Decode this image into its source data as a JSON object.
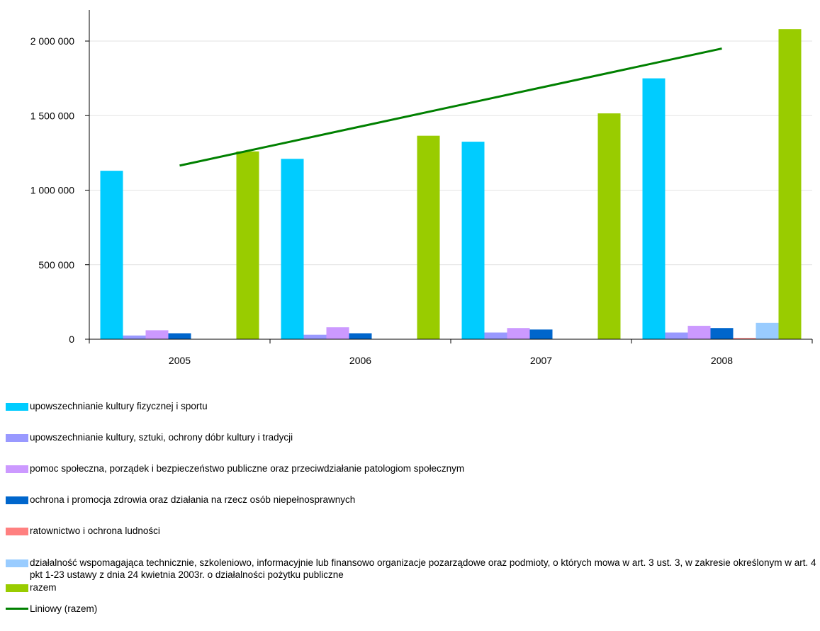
{
  "chart_data": {
    "type": "bar",
    "categories": [
      "2005",
      "2006",
      "2007",
      "2008"
    ],
    "ylim": [
      0,
      2200000
    ],
    "yticks": [
      0,
      500000,
      1000000,
      1500000,
      2000000
    ],
    "ytick_labels": [
      "0",
      "500 000",
      "1 000 000",
      "1 500 000",
      "2 000 000"
    ],
    "grid": true,
    "legend_position": "bottom",
    "series": [
      {
        "name": "upowszechnianie kultury fizycznej i sportu",
        "color": "#00ccff",
        "values": [
          1130000,
          1210000,
          1325000,
          1750000
        ]
      },
      {
        "name": "upowszechnianie kultury, sztuki, ochrony dóbr kultury i tradycji",
        "color": "#9999ff",
        "values": [
          25000,
          30000,
          45000,
          45000
        ]
      },
      {
        "name": "pomoc społeczna, porządek i bezpieczeństwo publiczne oraz przeciwdziałanie patologiom społecznym",
        "color": "#cc99ff",
        "values": [
          60000,
          80000,
          75000,
          90000
        ]
      },
      {
        "name": "ochrona i promocja zdrowia oraz działania na rzecz osób niepełnosprawnych",
        "color": "#0066cc",
        "values": [
          40000,
          40000,
          65000,
          75000
        ]
      },
      {
        "name": "ratownictwo i ochrona ludności",
        "color": "#ff8080",
        "values": [
          0,
          0,
          0,
          8000
        ]
      },
      {
        "name": "działalność wspomagająca technicznie, szkoleniowo, informacyjnie lub finansowo organizacje pozarządowe oraz podmioty, o których mowa w art. 3 ust. 3, w zakresie określonym w art. 4 pkt 1-23 ustawy z dnia 24 kwietnia 2003r. o działalności pożytku publiczne",
        "color": "#99ccff",
        "values": [
          0,
          0,
          0,
          110000
        ]
      },
      {
        "name": "razem",
        "color": "#99cc00",
        "values": [
          1260000,
          1365000,
          1515000,
          2080000
        ]
      }
    ],
    "trendline": {
      "name": "Liniowy (razem)",
      "color": "#008000",
      "start": 1165000,
      "end": 1950000
    }
  }
}
